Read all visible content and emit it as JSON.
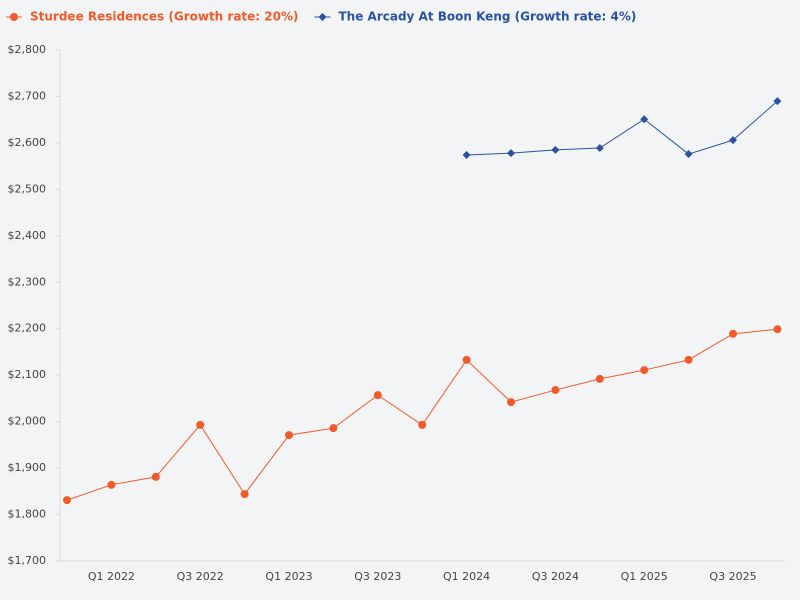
{
  "chart_data": {
    "type": "line",
    "categories": [
      null,
      "Q1 2022",
      null,
      "Q3 2022",
      null,
      "Q1 2023",
      null,
      "Q3 2023",
      null,
      "Q1 2024",
      null,
      "Q3 2024",
      null,
      "Q1 2025",
      null,
      "Q3 2025",
      null
    ],
    "series": [
      {
        "name": "Sturdee Residences (Growth rate: 20%)",
        "color": "#f15a29",
        "marker": "circle",
        "values": [
          1831,
          1864,
          1881,
          1993,
          1844,
          1971,
          1986,
          2057,
          1993,
          2133,
          2042,
          2068,
          2092,
          2111,
          2133,
          2189,
          2199
        ]
      },
      {
        "name": "The Arcady At Boon Keng (Growth rate: 4%)",
        "color": "#2a52a0",
        "marker": "diamond",
        "values": [
          null,
          null,
          null,
          null,
          null,
          null,
          null,
          null,
          null,
          2574,
          2578,
          2585,
          2589,
          2651,
          2576,
          2606,
          2690
        ]
      }
    ],
    "ylim": [
      1700,
      2800
    ],
    "yticks": [
      {
        "value": 1700,
        "label": "$1,700"
      },
      {
        "value": 1800,
        "label": "$1,800"
      },
      {
        "value": 1900,
        "label": "$1,900"
      },
      {
        "value": 2000,
        "label": "$2,000"
      },
      {
        "value": 2100,
        "label": "$2,100"
      },
      {
        "value": 2200,
        "label": "$2,200"
      },
      {
        "value": 2300,
        "label": "$2,300"
      },
      {
        "value": 2400,
        "label": "$2,400"
      },
      {
        "value": 2500,
        "label": "$2,500"
      },
      {
        "value": 2600,
        "label": "$2,600"
      },
      {
        "value": 2700,
        "label": "$2,700"
      },
      {
        "value": 2800,
        "label": "$2,800"
      }
    ],
    "legend": "top-left",
    "grid": false
  }
}
